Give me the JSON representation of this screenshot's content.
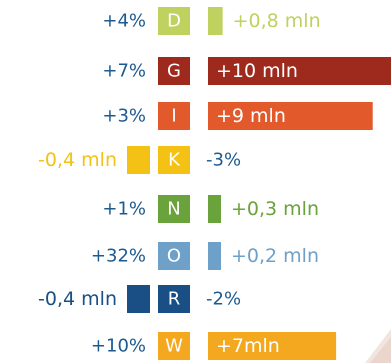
{
  "chart_data": {
    "type": "bar",
    "orientation": "horizontal-diverging",
    "title": "",
    "xlabel": "",
    "ylabel": "",
    "categories": [
      "D",
      "G",
      "I",
      "K",
      "N",
      "O",
      "R",
      "W"
    ],
    "values_mln": [
      0.8,
      10,
      9,
      -0.4,
      0.3,
      0.2,
      -0.4,
      7
    ],
    "value_labels": [
      "+0,8 mln",
      "+10 mln",
      "+9 mln",
      "-0,4 mln",
      "+0,3 mln",
      "+0,2 mln",
      "-0,4 mln",
      "+7mln"
    ],
    "change_labels": [
      "+4%",
      "+7%",
      "+3%",
      "-3%",
      "+1%",
      "+32%",
      "-2%",
      "+10%"
    ],
    "colors": [
      "#bfd260",
      "#9e2a1e",
      "#e2592b",
      "#f3c214",
      "#6aa23b",
      "#6fa0c8",
      "#1a4f86",
      "#f4a81f"
    ],
    "label_color": "#1c5a8f",
    "value_unit": "mln"
  }
}
